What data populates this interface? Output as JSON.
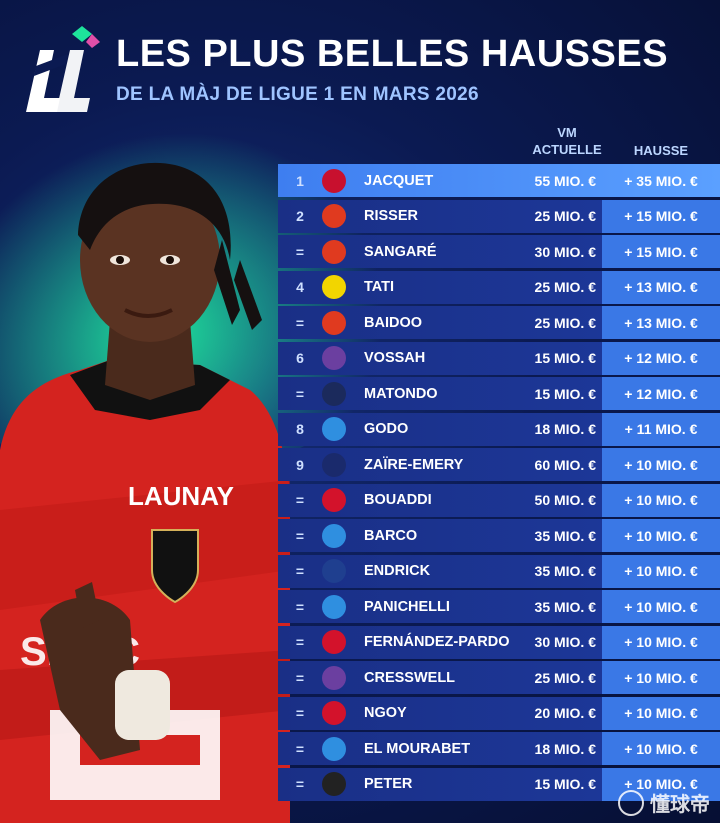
{
  "header": {
    "title": "LES PLUS BELLES HAUSSES",
    "subtitle": "DE LA MÀJ DE LIGUE 1 EN MARS 2026"
  },
  "columns": {
    "value_line1": "VM",
    "value_line2": "ACTUELLE",
    "rise": "HAUSSE"
  },
  "colors": {
    "background": "#0b1a52",
    "row": "#1d3a9e",
    "highlight_row": "#4a8cf5",
    "rise_column": "#3a78e6",
    "accent_green": "#1ee39b"
  },
  "player": {
    "shirt_sponsor": "LAUNAY",
    "shirt_front": "SESIC"
  },
  "rows": [
    {
      "rank": "1",
      "club_icon": "rennes-crest-icon",
      "club_color": "#c8102e",
      "name": "JACQUET",
      "value": "55 MIO. €",
      "rise": "+ 35 MIO. €"
    },
    {
      "rank": "2",
      "club_icon": "lens-crest-icon",
      "club_color": "#e03a1f",
      "name": "RISSER",
      "value": "25 MIO. €",
      "rise": "+ 15 MIO. €"
    },
    {
      "rank": "=",
      "club_icon": "lens-crest-icon",
      "club_color": "#e03a1f",
      "name": "SANGARÉ",
      "value": "30 MIO. €",
      "rise": "+ 15 MIO. €"
    },
    {
      "rank": "4",
      "club_icon": "nantes-crest-icon",
      "club_color": "#f2d500",
      "name": "TATI",
      "value": "25 MIO. €",
      "rise": "+ 13 MIO. €"
    },
    {
      "rank": "=",
      "club_icon": "lens-crest-icon",
      "club_color": "#e03a1f",
      "name": "BAIDOO",
      "value": "25 MIO. €",
      "rise": "+ 13 MIO. €"
    },
    {
      "rank": "6",
      "club_icon": "toulouse-crest-icon",
      "club_color": "#6b3fa0",
      "name": "VOSSAH",
      "value": "15 MIO. €",
      "rise": "+ 12 MIO. €"
    },
    {
      "rank": "=",
      "club_icon": "paris-fc-crest-icon",
      "club_color": "#1b2a5c",
      "name": "MATONDO",
      "value": "15 MIO. €",
      "rise": "+ 12 MIO. €"
    },
    {
      "rank": "8",
      "club_icon": "strasbourg-crest-icon",
      "club_color": "#2f8fe0",
      "name": "GODO",
      "value": "18 MIO. €",
      "rise": "+ 11 MIO. €"
    },
    {
      "rank": "9",
      "club_icon": "psg-crest-icon",
      "club_color": "#1a2a6c",
      "name": "ZAÏRE-EMERY",
      "value": "60 MIO. €",
      "rise": "+ 10 MIO. €"
    },
    {
      "rank": "=",
      "club_icon": "lille-crest-icon",
      "club_color": "#d3122b",
      "name": "BOUADDI",
      "value": "50 MIO. €",
      "rise": "+ 10 MIO. €"
    },
    {
      "rank": "=",
      "club_icon": "strasbourg-crest-icon",
      "club_color": "#2f8fe0",
      "name": "BARCO",
      "value": "35 MIO. €",
      "rise": "+ 10 MIO. €"
    },
    {
      "rank": "=",
      "club_icon": "lyon-crest-icon",
      "club_color": "#1f3f8f",
      "name": "ENDRICK",
      "value": "35 MIO. €",
      "rise": "+ 10 MIO. €"
    },
    {
      "rank": "=",
      "club_icon": "strasbourg-crest-icon",
      "club_color": "#2f8fe0",
      "name": "PANICHELLI",
      "value": "35 MIO. €",
      "rise": "+ 10 MIO. €"
    },
    {
      "rank": "=",
      "club_icon": "lille-crest-icon",
      "club_color": "#d3122b",
      "name": "FERNÁNDEZ-PARDO",
      "value": "30 MIO. €",
      "rise": "+ 10 MIO. €"
    },
    {
      "rank": "=",
      "club_icon": "toulouse-crest-icon",
      "club_color": "#6b3fa0",
      "name": "CRESSWELL",
      "value": "25 MIO. €",
      "rise": "+ 10 MIO. €"
    },
    {
      "rank": "=",
      "club_icon": "lille-crest-icon",
      "club_color": "#d3122b",
      "name": "NGOY",
      "value": "20 MIO. €",
      "rise": "+ 10 MIO. €"
    },
    {
      "rank": "=",
      "club_icon": "strasbourg-crest-icon",
      "club_color": "#2f8fe0",
      "name": "EL MOURABET",
      "value": "18 MIO. €",
      "rise": "+ 10 MIO. €"
    },
    {
      "rank": "=",
      "club_icon": "angers-crest-icon",
      "club_color": "#222222",
      "name": "PETER",
      "value": "15 MIO. €",
      "rise": "+ 10 MIO. €"
    }
  ],
  "watermark": "懂球帝"
}
